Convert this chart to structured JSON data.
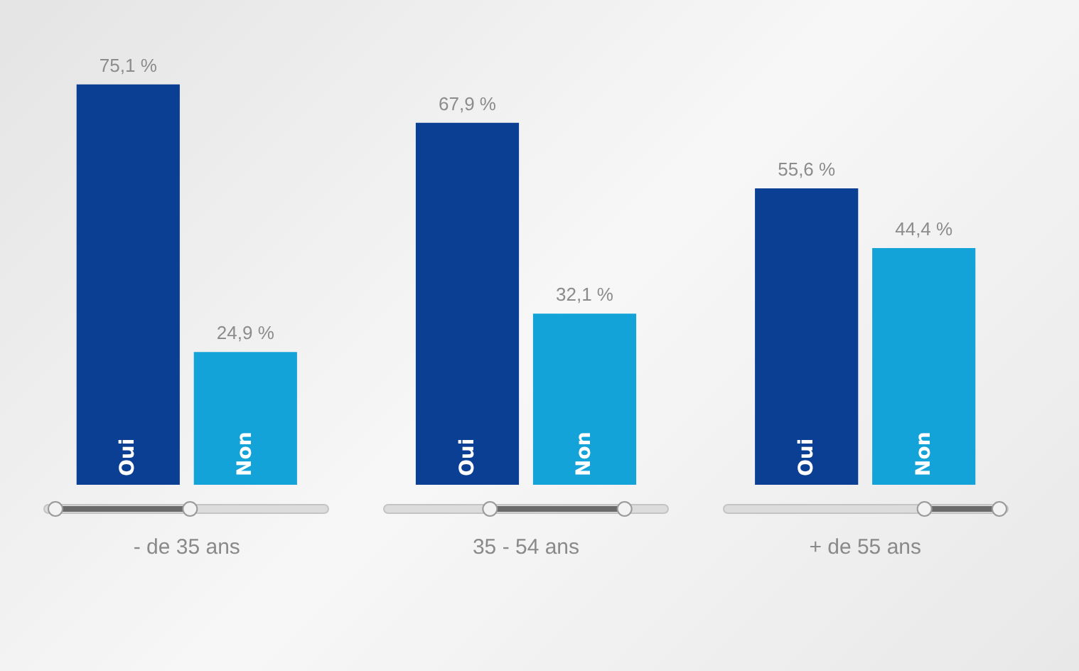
{
  "chart_data": {
    "type": "bar",
    "categories": [
      "- de 35 ans",
      "35 - 54 ans",
      "+ de 55 ans"
    ],
    "series": [
      {
        "name": "Oui",
        "color": "#0b3f94",
        "values": [
          75.1,
          67.9,
          55.6
        ],
        "value_labels": [
          "75,1 %",
          "67,9 %",
          "55,6 %"
        ]
      },
      {
        "name": "Non",
        "color": "#13a3d8",
        "values": [
          24.9,
          32.1,
          44.4
        ],
        "value_labels": [
          "24,9 %",
          "32,1 %",
          "44,4 %"
        ]
      }
    ]
  }
}
